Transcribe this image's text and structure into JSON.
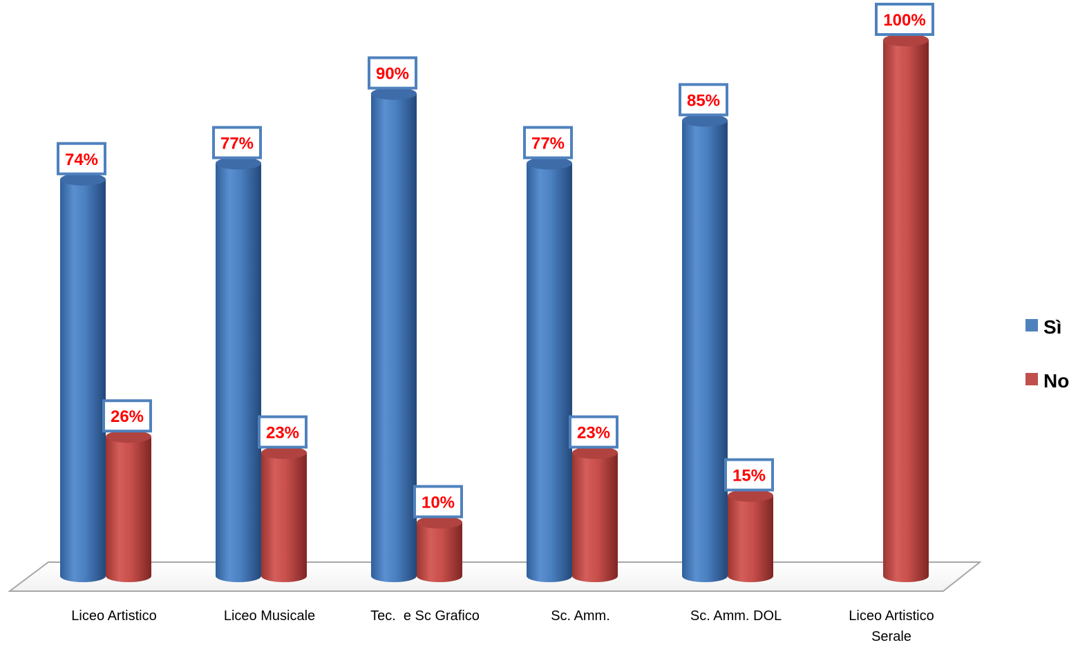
{
  "chart_data": {
    "type": "bar",
    "style": "3d-cylinder",
    "categories": [
      [
        "Liceo Artistico"
      ],
      [
        "Liceo Musicale"
      ],
      [
        "Tec.  e Sc Grafico"
      ],
      [
        "Sc. Amm."
      ],
      [
        "Sc. Amm. DOL"
      ],
      [
        "Liceo Artistico",
        "Serale"
      ]
    ],
    "series": [
      {
        "name": "Sì",
        "color": "#4f81bd",
        "values": [
          74,
          77,
          90,
          77,
          85,
          null
        ],
        "labels": [
          "74%",
          "77%",
          "90%",
          "77%",
          "85%",
          ""
        ]
      },
      {
        "name": "No",
        "color": "#c0504d",
        "values": [
          26,
          23,
          10,
          23,
          15,
          100
        ],
        "labels": [
          "26%",
          "23%",
          "10%",
          "23%",
          "15%",
          "100%"
        ]
      }
    ],
    "ylim": [
      0,
      100
    ],
    "grid": false,
    "legend": "right",
    "label_color": "#ff0000",
    "label_border_color": "#4f81bd"
  }
}
